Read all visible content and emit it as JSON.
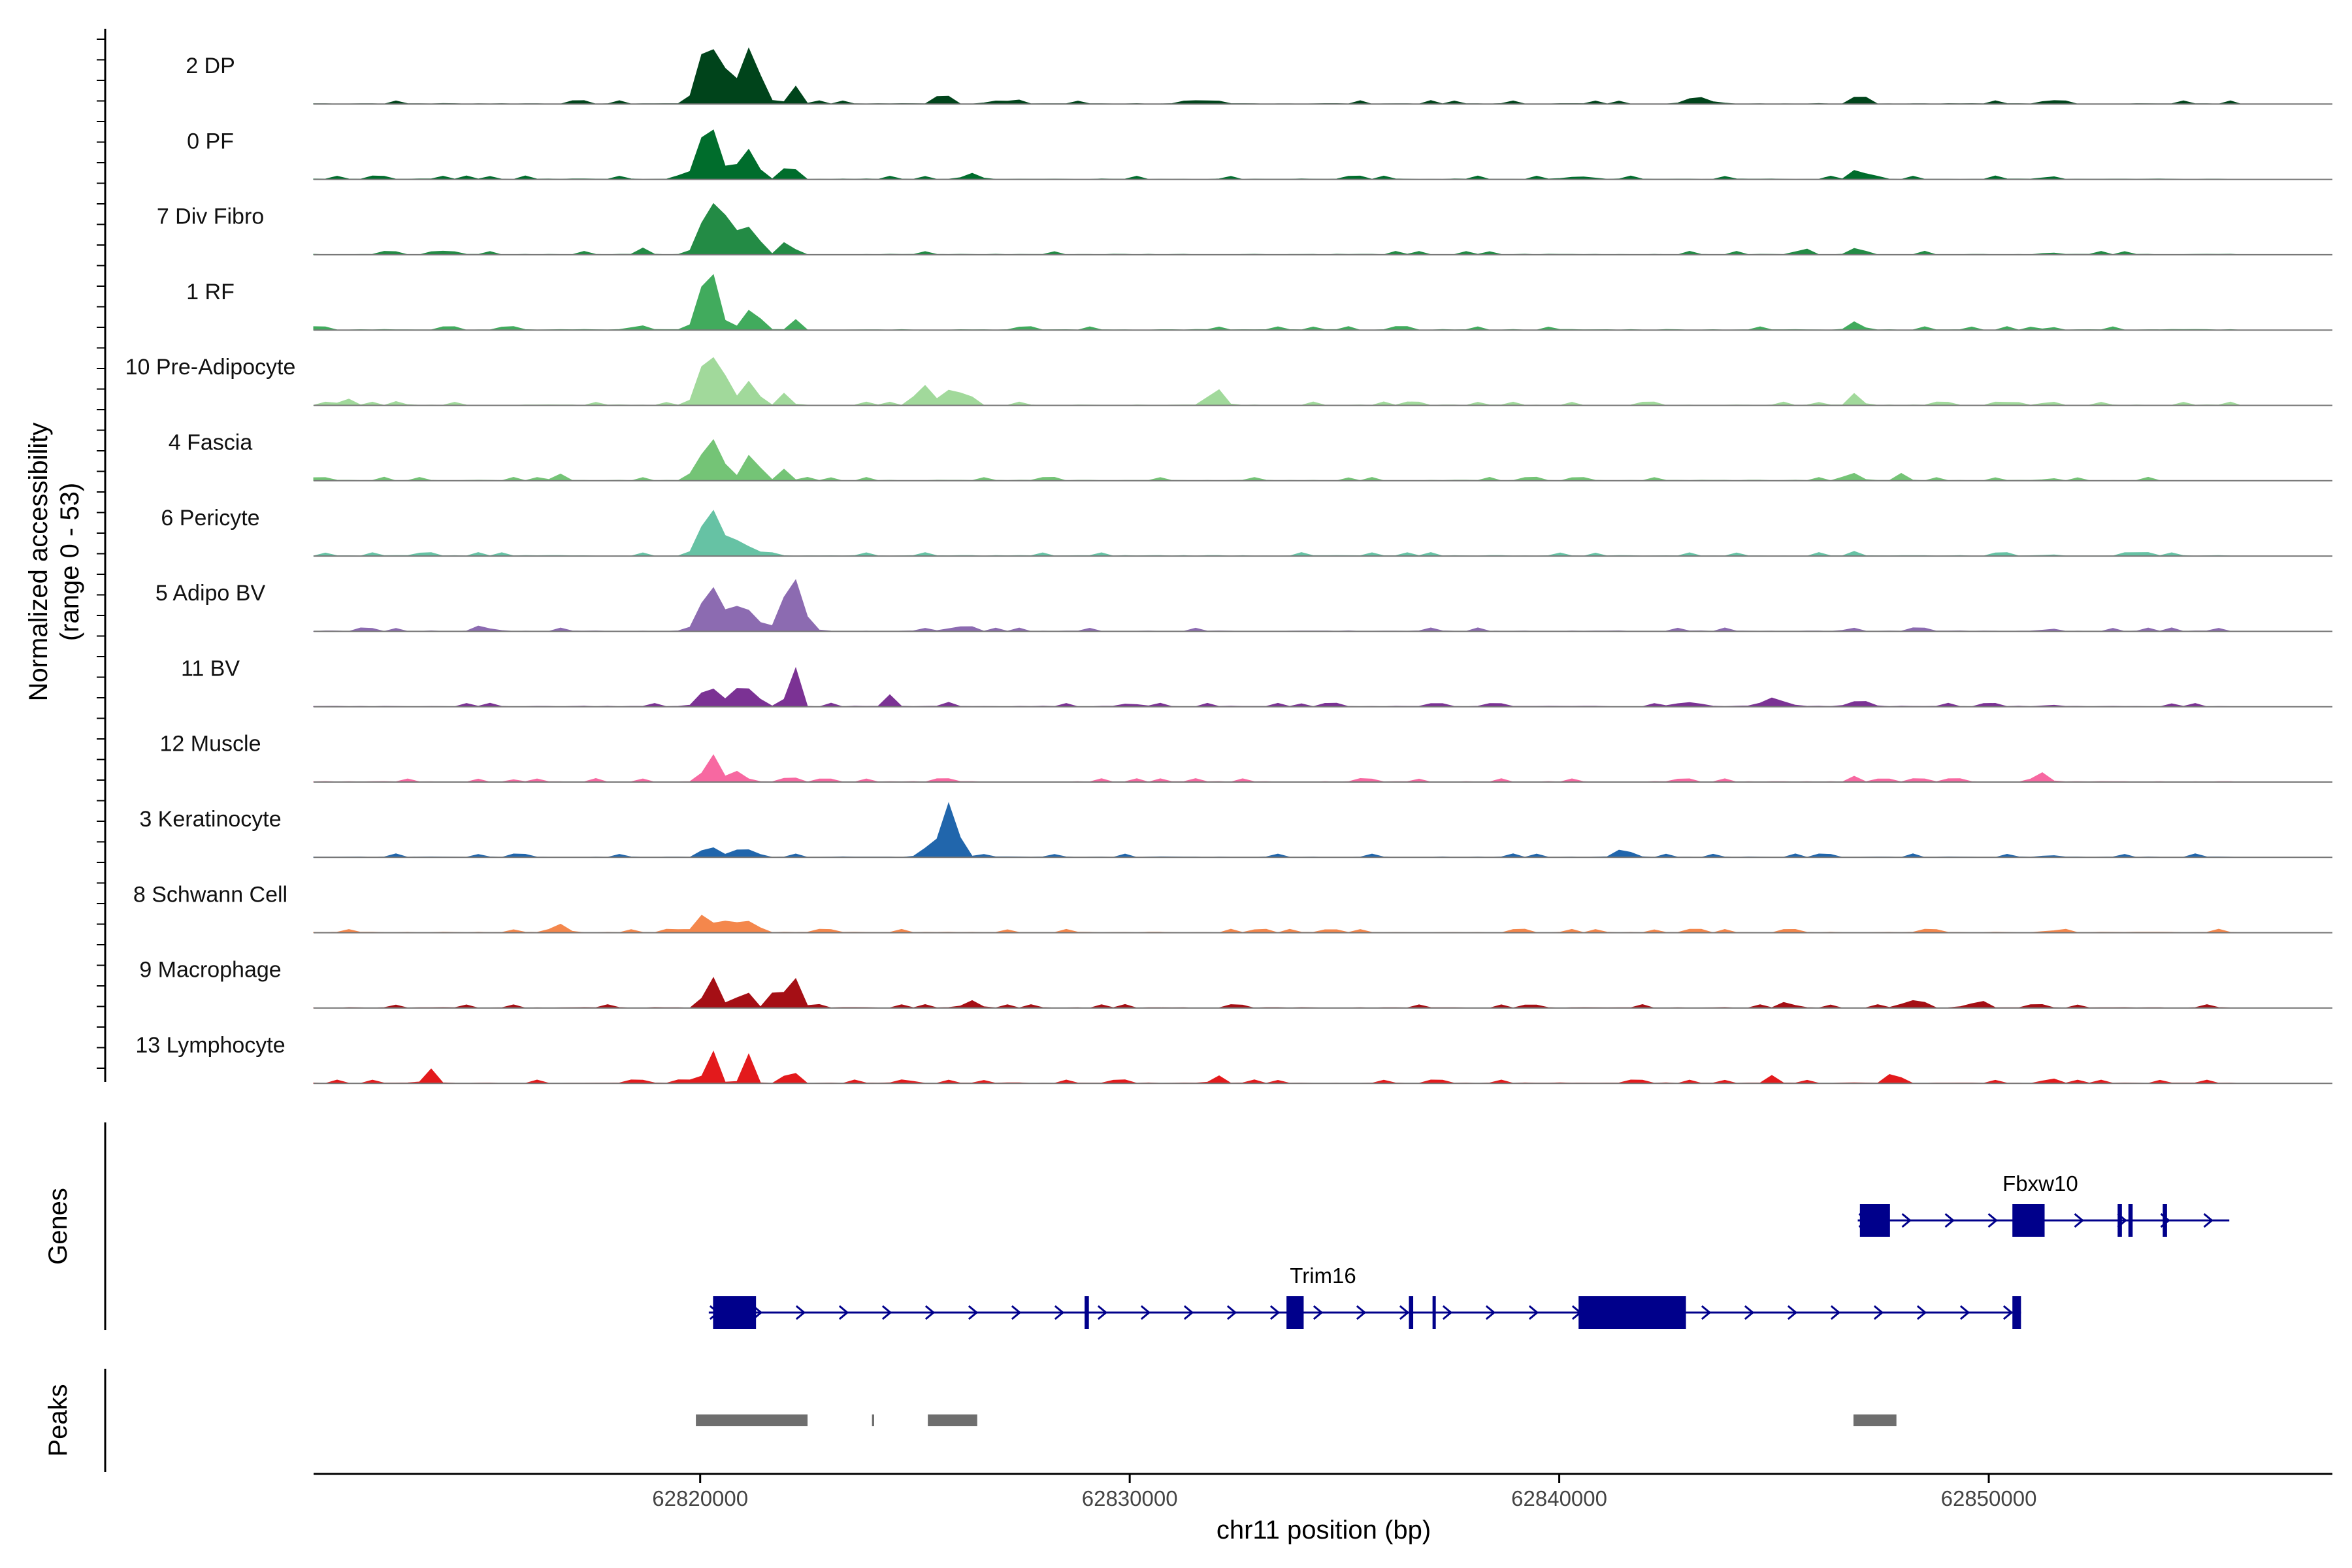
{
  "chart_data": {
    "type": "area",
    "title": "",
    "ylabel": "Normalized accessibility",
    "ylabel_range": "(range 0 - 53)",
    "xlabel": "chr11 position (bp)",
    "xlim": [
      62811000,
      62858000
    ],
    "ylim": [
      0,
      53
    ],
    "x_ticks": [
      62820000,
      62830000,
      62840000,
      62850000
    ],
    "x_tick_labels": [
      "62820000",
      "62830000",
      "62840000",
      "62850000"
    ],
    "panel_labels": {
      "genes": "Genes",
      "peaks": "Peaks"
    },
    "tracks": [
      {
        "name": "2 DP",
        "color": "#00441b",
        "peaks": [
          [
            62820150,
            0.9,
            200
          ],
          [
            62821150,
            0.93,
            220
          ],
          [
            62820500,
            0.55,
            150
          ],
          [
            62822200,
            0.3,
            120
          ],
          [
            62825650,
            0.2,
            140
          ],
          [
            62847000,
            0.18,
            140
          ],
          [
            62851400,
            0.12,
            100
          ],
          [
            62827000,
            0.05,
            250
          ],
          [
            62843300,
            0.06,
            300
          ]
        ]
      },
      {
        "name": "0 PF",
        "color": "#006d2c",
        "peaks": [
          [
            62820200,
            0.92,
            220
          ],
          [
            62821100,
            0.5,
            200
          ],
          [
            62822100,
            0.3,
            110
          ],
          [
            62847000,
            0.16,
            130
          ],
          [
            62851400,
            0.08,
            100
          ],
          [
            62826300,
            0.05,
            200
          ],
          [
            62840500,
            0.04,
            250
          ]
        ]
      },
      {
        "name": "7 Div Fibro",
        "color": "#238b45",
        "peaks": [
          [
            62820250,
            0.85,
            220
          ],
          [
            62820700,
            0.5,
            160
          ],
          [
            62821200,
            0.42,
            180
          ],
          [
            62822050,
            0.3,
            110
          ],
          [
            62818700,
            0.12,
            100
          ],
          [
            62847000,
            0.1,
            120
          ],
          [
            62845800,
            0.1,
            80
          ],
          [
            62851400,
            0.09,
            80
          ]
        ]
      },
      {
        "name": "1 RF",
        "color": "#41ab5d",
        "peaks": [
          [
            62820200,
            1.0,
            200
          ],
          [
            62821200,
            0.35,
            180
          ],
          [
            62822200,
            0.18,
            90
          ],
          [
            62846900,
            0.14,
            140
          ],
          [
            62851400,
            0.12,
            80
          ],
          [
            62818500,
            0.04,
            150
          ]
        ]
      },
      {
        "name": "10 Pre-Adipocyte",
        "color": "#a1d99b",
        "peaks": [
          [
            62820200,
            0.9,
            200
          ],
          [
            62820600,
            0.35,
            120
          ],
          [
            62821150,
            0.4,
            150
          ],
          [
            62822000,
            0.22,
            100
          ],
          [
            62825200,
            0.28,
            160
          ],
          [
            62825800,
            0.25,
            180
          ],
          [
            62826200,
            0.2,
            140
          ],
          [
            62832000,
            0.3,
            150
          ],
          [
            62846900,
            0.2,
            120
          ],
          [
            62851400,
            0.15,
            80
          ],
          [
            62811700,
            0.1,
            100
          ],
          [
            62813000,
            0.08,
            100
          ]
        ]
      },
      {
        "name": "4 Fascia",
        "color": "#74c476",
        "peaks": [
          [
            62820250,
            0.7,
            220
          ],
          [
            62821200,
            0.4,
            180
          ],
          [
            62822000,
            0.15,
            100
          ],
          [
            62816700,
            0.12,
            120
          ],
          [
            62846900,
            0.12,
            120
          ],
          [
            62848000,
            0.08,
            100
          ],
          [
            62851400,
            0.1,
            80
          ]
        ]
      },
      {
        "name": "6 Pericyte",
        "color": "#66c2a4",
        "peaks": [
          [
            62820250,
            0.78,
            220
          ],
          [
            62820800,
            0.25,
            150
          ],
          [
            62821200,
            0.15,
            150
          ],
          [
            62846900,
            0.08,
            100
          ],
          [
            62851400,
            0.06,
            80
          ]
        ]
      },
      {
        "name": "5 Adipo BV",
        "color": "#8c6bb1",
        "peaks": [
          [
            62820250,
            0.75,
            220
          ],
          [
            62820800,
            0.35,
            150
          ],
          [
            62821200,
            0.35,
            150
          ],
          [
            62822150,
            0.85,
            220
          ],
          [
            62826000,
            0.08,
            200
          ],
          [
            62851400,
            0.1,
            80
          ],
          [
            62846800,
            0.06,
            120
          ],
          [
            62815000,
            0.05,
            200
          ]
        ]
      },
      {
        "name": "11 BV",
        "color": "#7b3294",
        "peaks": [
          [
            62820200,
            0.35,
            180
          ],
          [
            62820800,
            0.25,
            150
          ],
          [
            62821200,
            0.3,
            150
          ],
          [
            62822150,
            0.85,
            100
          ],
          [
            62824400,
            0.2,
            100
          ],
          [
            62825700,
            0.12,
            80
          ],
          [
            62845000,
            0.1,
            300
          ],
          [
            62847000,
            0.1,
            200
          ],
          [
            62851400,
            0.18,
            60
          ],
          [
            62843000,
            0.06,
            300
          ],
          [
            62830000,
            0.05,
            200
          ]
        ]
      },
      {
        "name": "12 Muscle",
        "color": "#f768a1",
        "peaks": [
          [
            62820300,
            0.45,
            150
          ],
          [
            62820800,
            0.15,
            100
          ],
          [
            62822050,
            0.12,
            80
          ],
          [
            62851300,
            0.18,
            100
          ],
          [
            62852200,
            0.08,
            60
          ],
          [
            62846900,
            0.1,
            80
          ],
          [
            62815600,
            0.05,
            60
          ]
        ]
      },
      {
        "name": "3 Keratinocyte",
        "color": "#2166ac",
        "peaks": [
          [
            62825800,
            0.9,
            180
          ],
          [
            62825300,
            0.15,
            150
          ],
          [
            62820200,
            0.2,
            150
          ],
          [
            62820800,
            0.12,
            150
          ],
          [
            62821200,
            0.12,
            150
          ],
          [
            62841500,
            0.15,
            150
          ],
          [
            62851400,
            0.06,
            100
          ]
        ]
      },
      {
        "name": "8 Schwann Cell",
        "color": "#f4874c",
        "peaks": [
          [
            62820100,
            0.3,
            180
          ],
          [
            62820700,
            0.25,
            150
          ],
          [
            62821200,
            0.2,
            150
          ],
          [
            62816700,
            0.15,
            150
          ],
          [
            62851400,
            0.08,
            80
          ]
        ]
      },
      {
        "name": "9 Macrophage",
        "color": "#a50f15",
        "peaks": [
          [
            62820300,
            0.5,
            150
          ],
          [
            62821000,
            0.35,
            120
          ],
          [
            62822150,
            0.55,
            150
          ],
          [
            62821700,
            0.25,
            120
          ],
          [
            62826300,
            0.12,
            150
          ],
          [
            62848200,
            0.12,
            200
          ],
          [
            62845300,
            0.1,
            150
          ],
          [
            62849700,
            0.08,
            200
          ]
        ]
      },
      {
        "name": "13 Lymphocyte",
        "color": "#e31a1c",
        "peaks": [
          [
            62820250,
            0.6,
            120
          ],
          [
            62821100,
            0.5,
            100
          ],
          [
            62822100,
            0.35,
            100
          ],
          [
            62813700,
            0.25,
            100
          ],
          [
            62847800,
            0.22,
            120
          ],
          [
            62851400,
            0.22,
            80
          ],
          [
            62845000,
            0.18,
            60
          ],
          [
            62824800,
            0.1,
            100
          ],
          [
            62832000,
            0.1,
            100
          ]
        ]
      }
    ],
    "genes": [
      {
        "name": "Fbxw10",
        "start": 62846950,
        "end": 62855600,
        "strand": "+",
        "exons": [
          [
            62847000,
            62847700
          ],
          [
            62850550,
            62851300
          ],
          [
            62853000,
            62853100
          ],
          [
            62853250,
            62853350
          ],
          [
            62854050,
            62854150
          ]
        ]
      },
      {
        "name": "Trim16",
        "start": 62820200,
        "end": 62850750,
        "strand": "+",
        "exons": [
          [
            62820300,
            62821300
          ],
          [
            62828950,
            62829050
          ],
          [
            62833650,
            62834050
          ],
          [
            62836500,
            62836600
          ],
          [
            62837050,
            62837100
          ],
          [
            62840450,
            62842950
          ],
          [
            62850550,
            62850750
          ]
        ]
      }
    ],
    "peaks": [
      {
        "start": 62819900,
        "end": 62822500
      },
      {
        "start": 62824000,
        "end": 62824050
      },
      {
        "start": 62825300,
        "end": 62826450
      },
      {
        "start": 62846850,
        "end": 62847850
      }
    ]
  }
}
